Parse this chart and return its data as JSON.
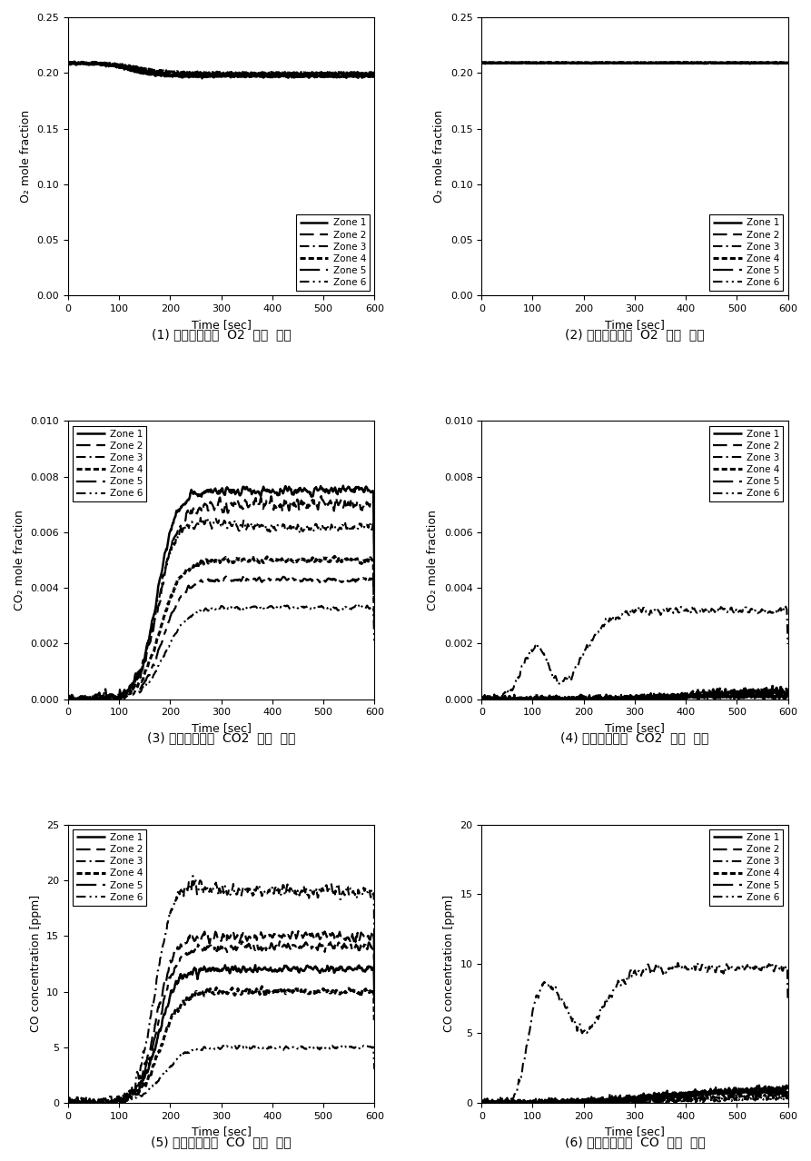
{
  "subplot_captions": [
    "(1) 상층부에서의  O2  농도  변화",
    "(2) 하층부에서의  O2  농도  변화",
    "(3) 상층부에서의  CO2  농도  변화",
    "(4) 하층부에서의  CO2  농도  변화",
    "(5) 상층부에서의  CO  농도  변화",
    "(6) 하층부에서의  CO  농도  변화"
  ],
  "zones": [
    "Zone 1",
    "Zone 2",
    "Zone 3",
    "Zone 4",
    "Zone 5",
    "Zone 6"
  ],
  "xlim": [
    0,
    600
  ],
  "xticks": [
    0,
    100,
    200,
    300,
    400,
    500,
    600
  ],
  "xlabel": "Time [sec]",
  "plots": [
    {
      "ylabel": "O₂ mole fraction",
      "ylim": [
        0,
        0.25
      ],
      "yticks": [
        0,
        0.05,
        0.1,
        0.15,
        0.2,
        0.25
      ],
      "legend_loc": "lower right"
    },
    {
      "ylabel": "O₂ mole fraction",
      "ylim": [
        0,
        0.25
      ],
      "yticks": [
        0,
        0.05,
        0.1,
        0.15,
        0.2,
        0.25
      ],
      "legend_loc": "lower right"
    },
    {
      "ylabel": "CO₂ mole fraction",
      "ylim": [
        0,
        0.01
      ],
      "yticks": [
        0,
        0.002,
        0.004,
        0.006,
        0.008,
        0.01
      ],
      "legend_loc": "upper left"
    },
    {
      "ylabel": "CO₂ mole fraction",
      "ylim": [
        0,
        0.01
      ],
      "yticks": [
        0,
        0.002,
        0.004,
        0.006,
        0.008,
        0.01
      ],
      "legend_loc": "upper right"
    },
    {
      "ylabel": "CO concentration [ppm]",
      "ylim": [
        0,
        25
      ],
      "yticks": [
        0,
        5,
        10,
        15,
        20,
        25
      ],
      "legend_loc": "upper left"
    },
    {
      "ylabel": "CO concentration [ppm]",
      "ylim": [
        0,
        20
      ],
      "yticks": [
        0,
        5,
        10,
        15,
        20
      ],
      "legend_loc": "upper right"
    }
  ]
}
